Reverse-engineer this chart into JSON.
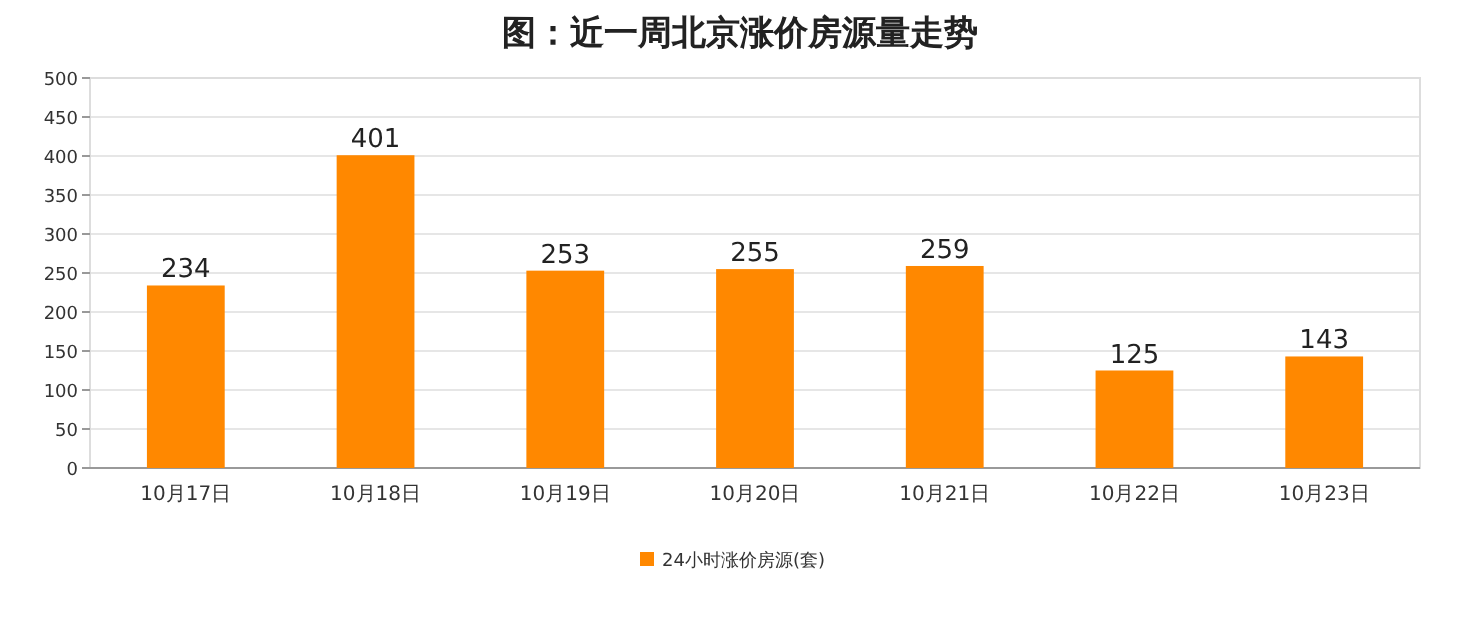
{
  "chart_data": {
    "type": "bar",
    "title": "图：近一周北京涨价房源量走势",
    "categories": [
      "10月17日",
      "10月18日",
      "10月19日",
      "10月20日",
      "10月21日",
      "10月22日",
      "10月23日"
    ],
    "series": [
      {
        "name": "24小时涨价房源(套)",
        "color": "#ff8800",
        "values": [
          234,
          401,
          253,
          255,
          259,
          125,
          143
        ]
      }
    ],
    "ylim": [
      0,
      500
    ],
    "yticks": [
      0,
      50,
      100,
      150,
      200,
      250,
      300,
      350,
      400,
      450,
      500
    ],
    "grid": "y",
    "data_labels": true,
    "legend": "bottom"
  }
}
